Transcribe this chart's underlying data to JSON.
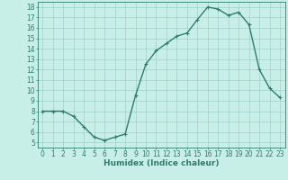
{
  "x": [
    0,
    1,
    2,
    3,
    4,
    5,
    6,
    7,
    8,
    9,
    10,
    11,
    12,
    13,
    14,
    15,
    16,
    17,
    18,
    19,
    20,
    21,
    22,
    23
  ],
  "y": [
    8,
    8,
    8,
    7.5,
    6.5,
    5.5,
    5.2,
    5.5,
    5.8,
    9.5,
    12.5,
    13.8,
    14.5,
    15.2,
    15.5,
    16.8,
    18,
    17.8,
    17.2,
    17.5,
    16.3,
    12,
    10.2,
    9.3
  ],
  "line_color": "#2e7d6e",
  "marker": "+",
  "marker_size": 3,
  "bg_color": "#c8eee8",
  "grid_color": "#a0d0c8",
  "xlabel": "Humidex (Indice chaleur)",
  "xlim": [
    -0.5,
    23.5
  ],
  "ylim": [
    4.5,
    18.5
  ],
  "yticks": [
    5,
    6,
    7,
    8,
    9,
    10,
    11,
    12,
    13,
    14,
    15,
    16,
    17,
    18
  ],
  "xticks": [
    0,
    1,
    2,
    3,
    4,
    5,
    6,
    7,
    8,
    9,
    10,
    11,
    12,
    13,
    14,
    15,
    16,
    17,
    18,
    19,
    20,
    21,
    22,
    23
  ],
  "xlabel_fontsize": 6.5,
  "tick_fontsize": 5.5,
  "line_width": 1.0,
  "marker_color": "#2e7d6e"
}
